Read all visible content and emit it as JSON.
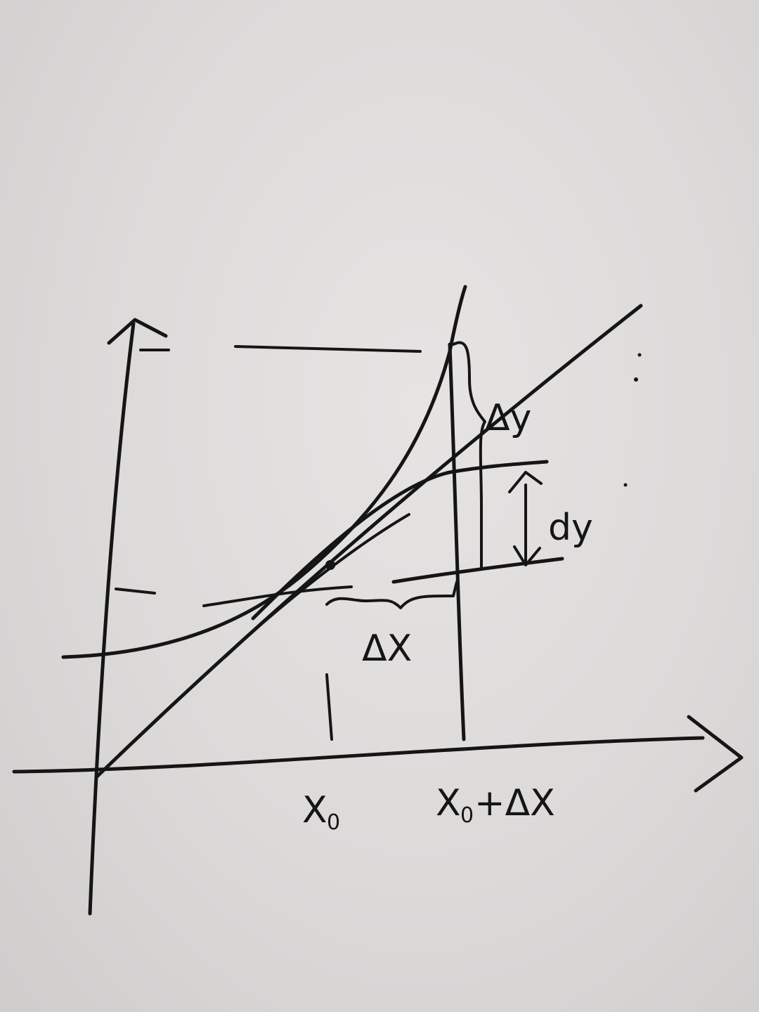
{
  "labels": {
    "x_axis_point_start": "X",
    "x_axis_point_start_sub": "0",
    "x_axis_point_end": "X",
    "x_axis_point_end_sub": "0",
    "x_axis_point_end_tail": "+ΔX",
    "increment_x": "ΔX",
    "increment_y": "Δy",
    "differential_y": "dy"
  },
  "colors": {
    "paper": "#dcdad9",
    "ink": "#151515"
  }
}
